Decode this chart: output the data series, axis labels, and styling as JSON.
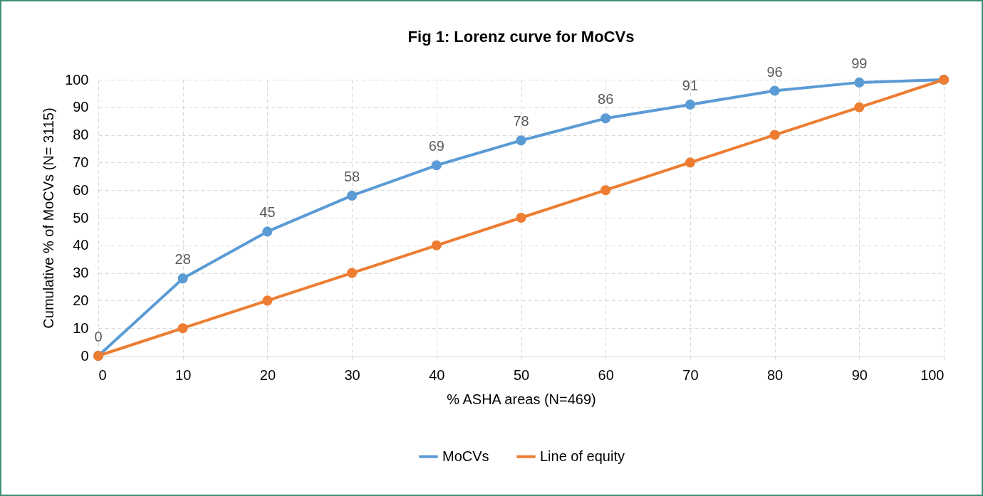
{
  "chart_data": {
    "type": "line",
    "title": "Fig 1: Lorenz curve for MoCVs",
    "xlabel": "% ASHA areas (N=469)",
    "ylabel": "Cumulative % of MoCVs (N= 3115)",
    "x": [
      0,
      10,
      20,
      30,
      40,
      50,
      60,
      70,
      80,
      90,
      100
    ],
    "series": [
      {
        "name": "MoCVs",
        "color": "#5b9bd5",
        "values": [
          0,
          28,
          45,
          58,
          69,
          78,
          86,
          91,
          96,
          99,
          100
        ],
        "value_labels": [
          "0",
          "28",
          "45",
          "58",
          "69",
          "78",
          "86",
          "91",
          "96",
          "99",
          null
        ]
      },
      {
        "name": "Line of equity",
        "color": "#ed7d31",
        "values": [
          0,
          10,
          20,
          30,
          40,
          50,
          60,
          70,
          80,
          90,
          100
        ]
      }
    ],
    "xlim": [
      0,
      100
    ],
    "xticks": [
      0,
      10,
      20,
      30,
      40,
      50,
      60,
      70,
      80,
      90,
      100
    ],
    "ylim": [
      0,
      100
    ],
    "yticks": [
      0,
      10,
      20,
      30,
      40,
      50,
      60,
      70,
      80,
      90,
      100
    ],
    "grid": true,
    "legend": "bottom",
    "marker": "circle",
    "line_style": "solid"
  }
}
